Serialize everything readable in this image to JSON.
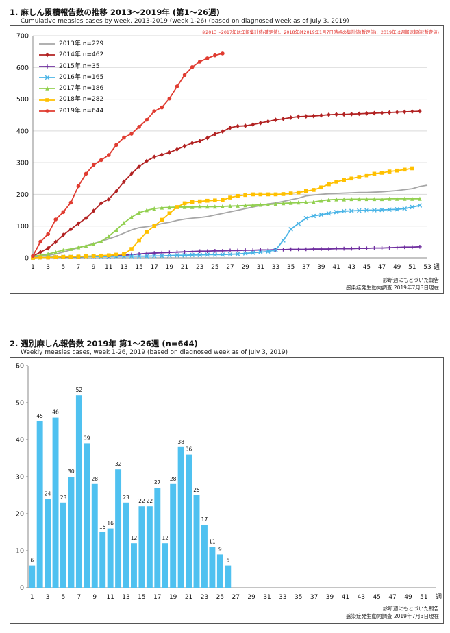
{
  "chart1": {
    "title": "1. 麻しん累積報告数の推移  2013～2019年 (第1～26週)",
    "subtitle": "Cumulative measles cases by week, 2013-2019 (week 1-26)  (based on diagnosed week as of July 3, 2019)",
    "note": "※2013～2017年は年報集計値(確定値)、2018年は2019年1月7日時点の集計値(暫定値)、2019年は週報速報値(暫定値)",
    "x_unit": "週",
    "source_line1": "診断週にもとづいた報告",
    "source_line2": "感染症発生動向調査 2019年7月3日現在"
  },
  "chart2": {
    "title": "2. 週別麻しん報告数  2019年 第1～26週 (n=644)",
    "subtitle": "Weekly measles cases, week 1-26, 2019 (based on diagnosed week as of July 3, 2019)",
    "x_unit": "週",
    "source_line1": "診断週にもとづいた報告",
    "source_line2": "感染症発生動向調査 2019年7月3日現在"
  },
  "chart_data": [
    {
      "type": "line",
      "ylim": [
        0,
        700
      ],
      "yticks": [
        0,
        100,
        200,
        300,
        400,
        500,
        600,
        700
      ],
      "xlim": [
        1,
        53
      ],
      "xticks": [
        1,
        3,
        5,
        7,
        9,
        11,
        13,
        15,
        17,
        19,
        21,
        23,
        25,
        27,
        29,
        31,
        33,
        35,
        37,
        39,
        41,
        43,
        45,
        47,
        49,
        51,
        53
      ],
      "grid": true,
      "legend": "top-left",
      "series": [
        {
          "name": "2013年 n=229",
          "color": "#a6a6a6",
          "marker": "none",
          "values": [
            3,
            5,
            8,
            12,
            18,
            25,
            32,
            38,
            45,
            52,
            60,
            68,
            78,
            88,
            95,
            98,
            102,
            108,
            112,
            118,
            122,
            125,
            127,
            130,
            135,
            140,
            145,
            150,
            155,
            160,
            165,
            170,
            173,
            178,
            183,
            188,
            195,
            198,
            200,
            202,
            203,
            204,
            205,
            206,
            206,
            207,
            208,
            210,
            212,
            215,
            218,
            225,
            229
          ]
        },
        {
          "name": "2014年 n=462",
          "color": "#b22222",
          "marker": "diamond",
          "values": [
            5,
            18,
            30,
            50,
            72,
            90,
            108,
            125,
            148,
            172,
            185,
            210,
            240,
            265,
            288,
            305,
            318,
            325,
            332,
            342,
            352,
            362,
            368,
            378,
            390,
            398,
            410,
            415,
            416,
            420,
            425,
            430,
            435,
            438,
            442,
            445,
            446,
            447,
            449,
            451,
            452,
            452,
            453,
            454,
            455,
            456,
            457,
            458,
            459,
            460,
            461,
            462
          ]
        },
        {
          "name": "2015年 n=35",
          "color": "#7030a0",
          "marker": "plus",
          "values": [
            0,
            1,
            1,
            2,
            2,
            3,
            3,
            4,
            5,
            6,
            6,
            7,
            8,
            10,
            12,
            14,
            15,
            16,
            17,
            18,
            19,
            20,
            21,
            21,
            22,
            22,
            23,
            23,
            24,
            24,
            25,
            25,
            26,
            26,
            27,
            27,
            27,
            28,
            28,
            28,
            29,
            29,
            29,
            30,
            30,
            31,
            31,
            32,
            33,
            34,
            34,
            35
          ]
        },
        {
          "name": "2016年 n=165",
          "color": "#4ab4e6",
          "marker": "x",
          "values": [
            1,
            1,
            2,
            2,
            3,
            3,
            3,
            4,
            4,
            4,
            4,
            5,
            5,
            5,
            5,
            5,
            6,
            6,
            7,
            8,
            8,
            9,
            9,
            10,
            10,
            10,
            11,
            12,
            14,
            16,
            18,
            20,
            25,
            55,
            90,
            108,
            125,
            132,
            136,
            140,
            144,
            147,
            148,
            149,
            150,
            150,
            151,
            152,
            153,
            155,
            160,
            165
          ]
        },
        {
          "name": "2017年 n=186",
          "color": "#92d050",
          "marker": "triangle",
          "values": [
            5,
            8,
            12,
            18,
            24,
            28,
            33,
            38,
            43,
            52,
            68,
            88,
            110,
            128,
            142,
            150,
            155,
            158,
            159,
            160,
            160,
            160,
            161,
            161,
            161,
            162,
            163,
            164,
            165,
            166,
            167,
            168,
            170,
            172,
            173,
            174,
            175,
            176,
            180,
            183,
            184,
            184,
            185,
            185,
            185,
            185,
            185,
            186,
            186,
            186,
            186,
            186
          ]
        },
        {
          "name": "2018年 n=282",
          "color": "#ffc000",
          "marker": "square",
          "values": [
            0,
            1,
            1,
            2,
            3,
            3,
            4,
            5,
            6,
            7,
            8,
            10,
            12,
            28,
            55,
            82,
            100,
            120,
            140,
            160,
            172,
            176,
            178,
            180,
            181,
            182,
            190,
            195,
            198,
            200,
            200,
            200,
            200,
            201,
            203,
            206,
            210,
            214,
            222,
            232,
            240,
            245,
            250,
            255,
            260,
            265,
            268,
            272,
            275,
            278,
            282
          ]
        },
        {
          "name": "2019年 n=644",
          "color": "#e03c31",
          "marker": "circle",
          "values": [
            6,
            51,
            75,
            121,
            144,
            174,
            226,
            265,
            293,
            308,
            324,
            356,
            379,
            391,
            413,
            435,
            462,
            474,
            502,
            540,
            576,
            601,
            618,
            629,
            638,
            644
          ]
        }
      ]
    },
    {
      "type": "bar",
      "ylim": [
        0,
        60
      ],
      "yticks": [
        0,
        10,
        20,
        30,
        40,
        50,
        60
      ],
      "xlim": [
        1,
        52
      ],
      "xticks": [
        1,
        3,
        5,
        7,
        9,
        11,
        13,
        15,
        17,
        19,
        21,
        23,
        25,
        27,
        29,
        31,
        33,
        35,
        37,
        39,
        41,
        43,
        45,
        47,
        49,
        51
      ],
      "grid": false,
      "color": "#4fc1f0",
      "categories": [
        1,
        2,
        3,
        4,
        5,
        6,
        7,
        8,
        9,
        10,
        11,
        12,
        13,
        14,
        15,
        16,
        17,
        18,
        19,
        20,
        21,
        22,
        23,
        24,
        25,
        26
      ],
      "values": [
        6,
        45,
        24,
        46,
        23,
        30,
        52,
        39,
        28,
        15,
        16,
        32,
        23,
        12,
        22,
        22,
        27,
        12,
        28,
        38,
        36,
        25,
        17,
        11,
        9,
        6
      ]
    }
  ]
}
